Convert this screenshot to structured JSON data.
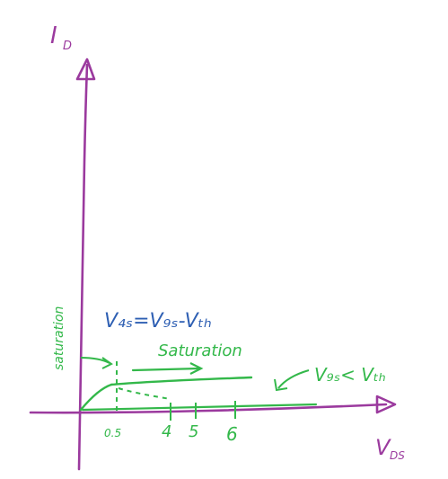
{
  "axes": {
    "y_label": "I",
    "y_label_sub": "D",
    "x_label": "V",
    "x_label_sub": "DS"
  },
  "ticks": [
    "0.5",
    "4",
    "5",
    "6"
  ],
  "annotations": {
    "saturation_vertical": "saturation",
    "boundary_equation": "V₄ₛ=V₉ₛ-Vₜₕ",
    "saturation_arrow_label": "Saturation",
    "cutoff_condition": "V₉ₛ< Vₜₕ"
  },
  "colors": {
    "axes": "#9b3a9e",
    "curves": "#33b84a",
    "equation": "#2e5fb3"
  }
}
